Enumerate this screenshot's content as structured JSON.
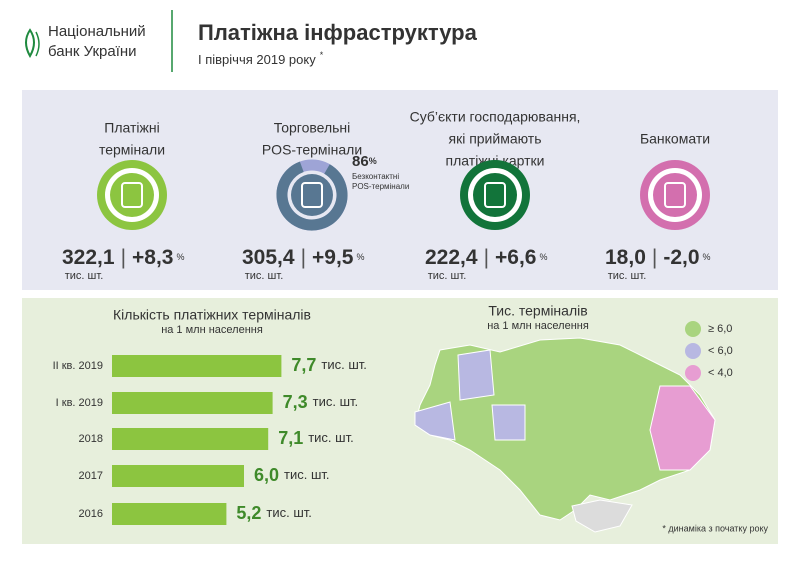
{
  "header": {
    "logo_lines": [
      "Національний",
      "банк України"
    ],
    "title": "Платіжна інфраструктура",
    "subtitle": "І півріччя 2019 року",
    "subtitle_mark": "*"
  },
  "kpis": [
    {
      "label_lines": [
        "Платіжні",
        "термінали"
      ],
      "value": "322,1",
      "change": "+8,3",
      "change_unit": "%",
      "unit": "тис. шт.",
      "color": "#8cc540"
    },
    {
      "label_lines": [
        "Торговельні",
        "POS-термінали"
      ],
      "value": "305,4",
      "change": "+9,5",
      "change_unit": "%",
      "unit": "тис. шт.",
      "color": "#587792",
      "share": {
        "value": 86,
        "unit": "%",
        "label_lines": [
          "Безконтактні",
          "POS-термінали"
        ],
        "rest_color": "#9ea4d6"
      }
    },
    {
      "label_lines": [
        "Суб’єкти господарювання,",
        "які приймають",
        "платіжні картки"
      ],
      "value": "222,4",
      "change": "+6,6",
      "change_unit": "%",
      "unit": "тис. шт.",
      "color": "#12743a"
    },
    {
      "label_lines": [
        "Банкомати"
      ],
      "value": "18,0",
      "change": "-2,0",
      "change_unit": "%",
      "unit": "тис. шт.",
      "color": "#d36fae"
    }
  ],
  "chart_data": {
    "type": "bar",
    "title": "Кількість платіжних терміналів",
    "subtitle": "на 1 млн населення",
    "categories": [
      "ІІ кв. 2019",
      "І кв. 2019",
      "2018",
      "2017",
      "2016"
    ],
    "values": [
      7.7,
      7.3,
      7.1,
      6.0,
      5.2
    ],
    "value_labels": [
      "7,7",
      "7,3",
      "7,1",
      "6,0",
      "5,2"
    ],
    "unit": "тис. шт.",
    "color": "#8cc540"
  },
  "map": {
    "title": "Тис. терміналів",
    "subtitle": "на 1 млн населення",
    "legend": [
      {
        "label": "≥ 6,0",
        "color": "#a9d47f"
      },
      {
        "label": "< 6,0",
        "color": "#b8b8e2"
      },
      {
        "label": "< 4,0",
        "color": "#e79dd2"
      }
    ]
  },
  "footnote": "* динаміка з початку року"
}
